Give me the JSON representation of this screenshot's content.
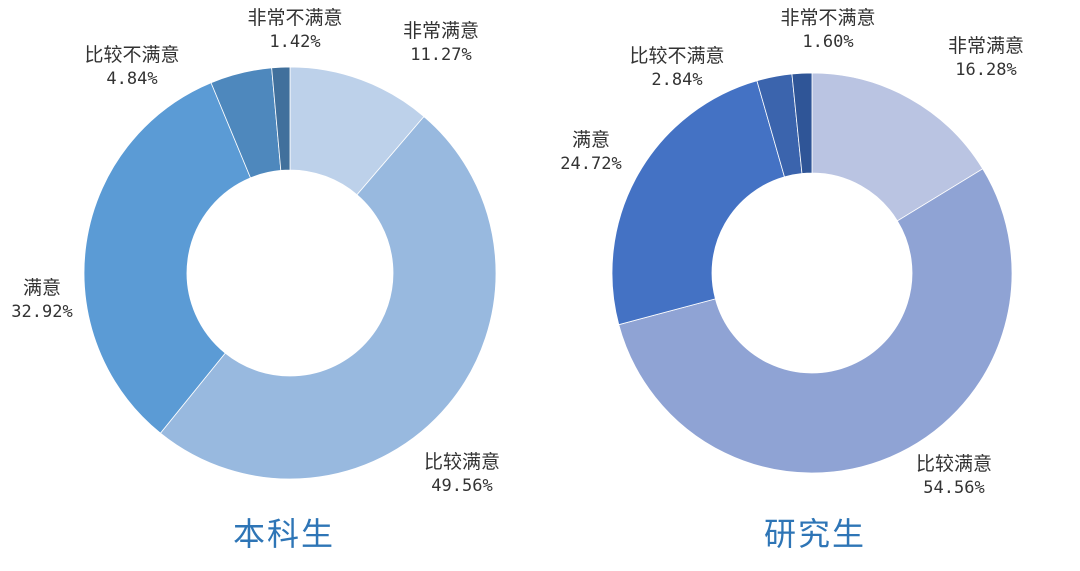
{
  "chart_data": [
    {
      "type": "pie",
      "variant": "donut",
      "title": "本科生",
      "categories": [
        "非常满意",
        "比较满意",
        "满意",
        "比较不满意",
        "非常不满意"
      ],
      "values": [
        11.27,
        49.56,
        32.92,
        4.84,
        1.42
      ],
      "labels": [
        "11.27%",
        "49.56%",
        "32.92%",
        "4.84%",
        "1.42%"
      ],
      "colors": [
        "#bdd1ea",
        "#98b9df",
        "#5b9bd5",
        "#4e88bd",
        "#41709c"
      ],
      "start_angle": "12 o'clock, clockwise",
      "legend": "none (data labels outside)"
    },
    {
      "type": "pie",
      "variant": "donut",
      "title": "研究生",
      "categories": [
        "非常满意",
        "比较满意",
        "满意",
        "比较不满意",
        "非常不满意"
      ],
      "values": [
        16.28,
        54.56,
        24.72,
        2.84,
        1.6
      ],
      "labels": [
        "16.28%",
        "54.56%",
        "24.72%",
        "2.84%",
        "1.60%"
      ],
      "colors": [
        "#bac4e2",
        "#8fa3d4",
        "#4472c4",
        "#3b64ad",
        "#2f5597"
      ],
      "start_angle": "12 o'clock, clockwise",
      "legend": "none (data labels outside)"
    }
  ],
  "left": {
    "title": "本科生",
    "labels": [
      {
        "name": "非常满意",
        "pct": "11.27%"
      },
      {
        "name": "比较满意",
        "pct": "49.56%"
      },
      {
        "name": "满意",
        "pct": "32.92%"
      },
      {
        "name": "比较不满意",
        "pct": "4.84%"
      },
      {
        "name": "非常不满意",
        "pct": "1.42%"
      }
    ]
  },
  "right": {
    "title": "研究生",
    "labels": [
      {
        "name": "非常满意",
        "pct": "16.28%"
      },
      {
        "name": "比较满意",
        "pct": "54.56%"
      },
      {
        "name": "满意",
        "pct": "24.72%"
      },
      {
        "name": "比较不满意",
        "pct": "2.84%"
      },
      {
        "name": "非常不满意",
        "pct": "1.60%"
      }
    ]
  }
}
